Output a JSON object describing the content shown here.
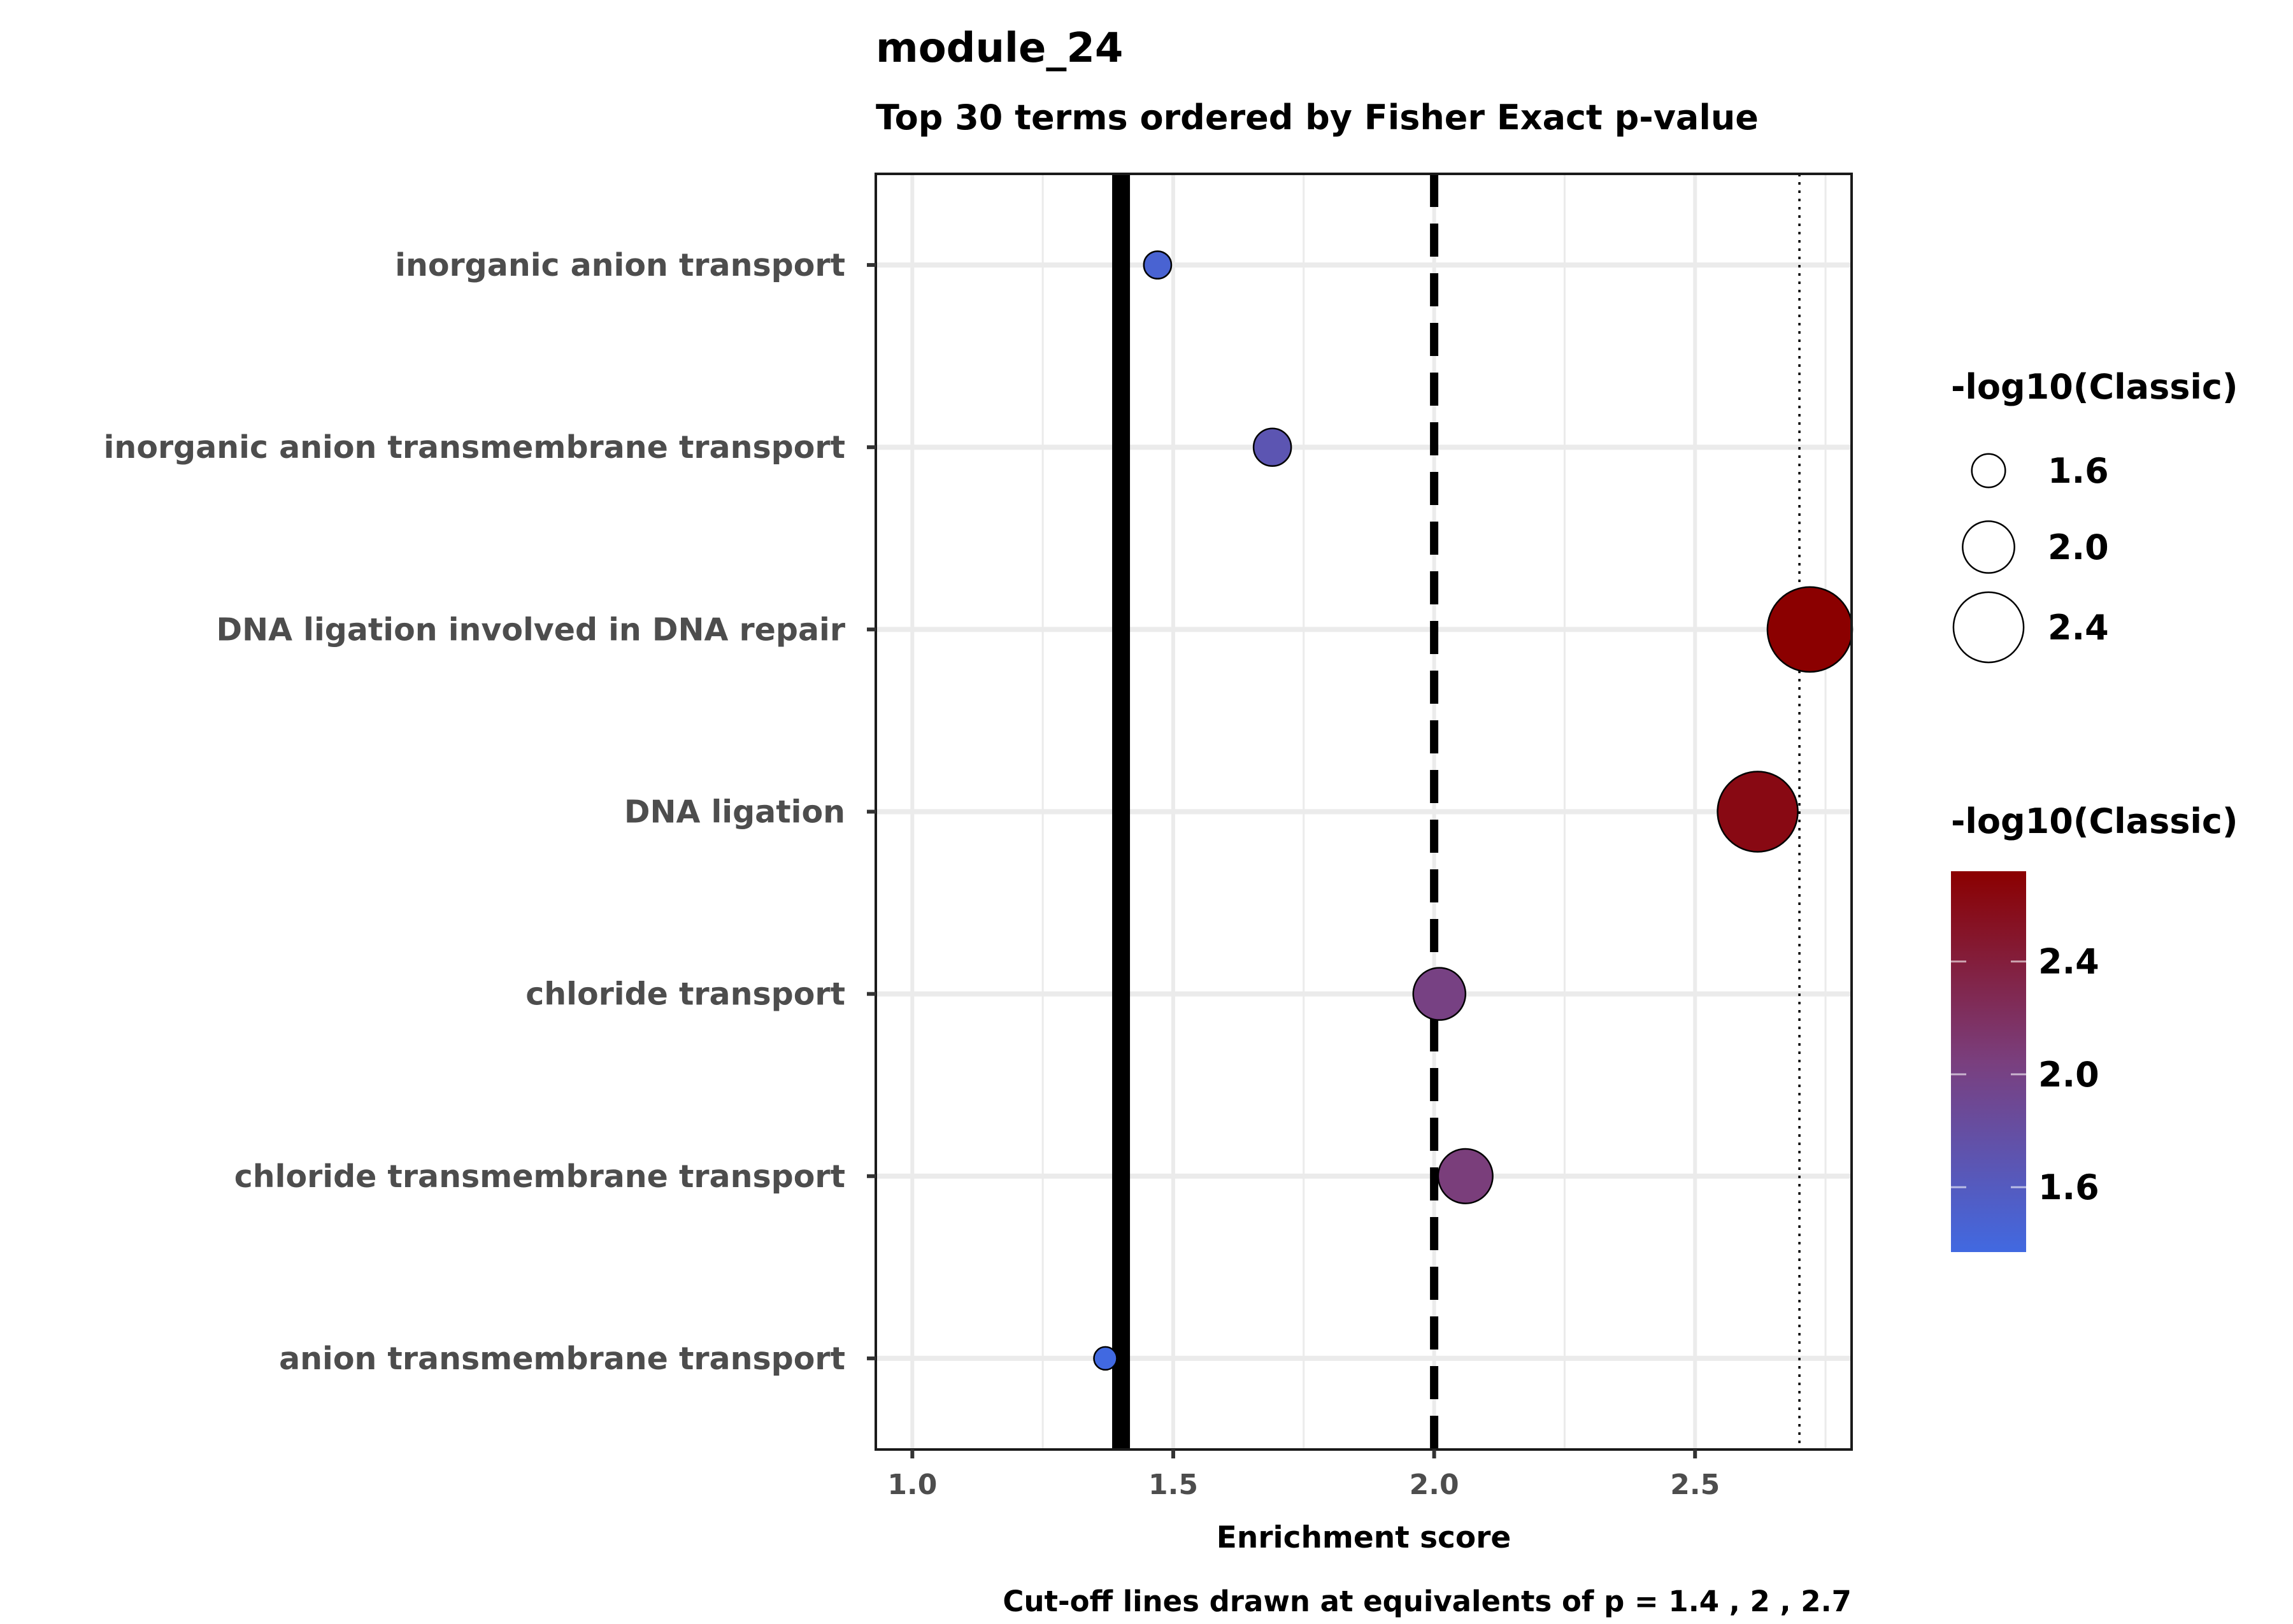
{
  "chart_data": {
    "type": "scatter",
    "title": "module_24",
    "subtitle": "Top 30 terms ordered by Fisher Exact p-value",
    "xlabel": "Enrichment score",
    "caption": "Cut-off lines drawn at equivalents of p = 1.4 , 2 , 2.7",
    "xlim": [
      0.93,
      2.8
    ],
    "xticks": [
      1.0,
      1.5,
      2.0,
      2.5
    ],
    "xtick_labels": [
      "1.0",
      "1.5",
      "2.0",
      "2.5"
    ],
    "categories": [
      "inorganic anion transport",
      "inorganic anion transmembrane transport",
      "DNA ligation involved in DNA repair",
      "DNA ligation",
      "chloride transport",
      "chloride transmembrane transport",
      "anion transmembrane transport"
    ],
    "points": [
      {
        "term": "inorganic anion transport",
        "x": 1.47,
        "neglog10": 1.47
      },
      {
        "term": "inorganic anion transmembrane transport",
        "x": 1.69,
        "neglog10": 1.69
      },
      {
        "term": "DNA ligation involved in DNA repair",
        "x": 2.72,
        "neglog10": 2.72
      },
      {
        "term": "DNA ligation",
        "x": 2.62,
        "neglog10": 2.62
      },
      {
        "term": "chloride transport",
        "x": 2.01,
        "neglog10": 2.01
      },
      {
        "term": "chloride transmembrane transport",
        "x": 2.06,
        "neglog10": 2.06
      },
      {
        "term": "anion transmembrane transport",
        "x": 1.37,
        "neglog10": 1.37
      }
    ],
    "cutoffs": [
      {
        "x": 1.4,
        "style": "solid-thick"
      },
      {
        "x": 2.0,
        "style": "dashed"
      },
      {
        "x": 2.7,
        "style": "dotted"
      }
    ],
    "grid": true,
    "legend_size": {
      "title": "-log10(Classic)",
      "entries": [
        {
          "label": "1.6",
          "value": 1.6
        },
        {
          "label": "2.0",
          "value": 2.0
        },
        {
          "label": "2.4",
          "value": 2.4
        }
      ]
    },
    "legend_color": {
      "title": "-log10(Classic)",
      "range": [
        1.37,
        2.72
      ],
      "low_color": "#4169e1",
      "high_color": "#8b0000",
      "ticks": [
        {
          "label": "1.6",
          "value": 1.6
        },
        {
          "label": "2.0",
          "value": 2.0
        },
        {
          "label": "2.4",
          "value": 2.4
        }
      ]
    }
  }
}
